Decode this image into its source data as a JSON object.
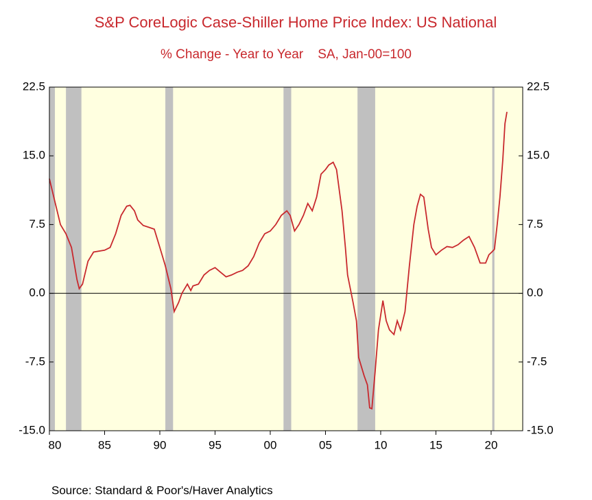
{
  "chart_data": {
    "type": "line",
    "title": "S&P CoreLogic Case-Shiller Home Price Index: US National",
    "subtitle": "% Change - Year to Year    SA, Jan-00=100",
    "source": "Source:  Standard & Poor's/Haver Analytics",
    "xlim": [
      1980,
      2022.86
    ],
    "ylim": [
      -15,
      22.5
    ],
    "yticks": [
      22.5,
      {
        "value": 15,
        "label": "15.0"
      },
      7.5,
      {
        "value": 0,
        "label": "0.0"
      },
      -7.5,
      {
        "value": -15,
        "label": "-15.0"
      }
    ],
    "xticks": [
      {
        "value": 1980,
        "label": "80"
      },
      {
        "value": 1985,
        "label": "85"
      },
      {
        "value": 1990,
        "label": "90"
      },
      {
        "value": 1995,
        "label": "95"
      },
      {
        "value": 2000,
        "label": "00"
      },
      {
        "value": 2005,
        "label": "05"
      },
      {
        "value": 2010,
        "label": "10"
      },
      {
        "value": 2015,
        "label": "15"
      },
      {
        "value": 2020,
        "label": "20"
      }
    ],
    "recessions": [
      [
        1980.0,
        1980.5
      ],
      [
        1981.5,
        1982.9
      ],
      [
        1990.5,
        1991.2
      ],
      [
        2001.2,
        2001.9
      ],
      [
        2007.9,
        2009.5
      ],
      [
        2020.1,
        2020.3
      ]
    ],
    "recession_color": "#c0c0c0",
    "background": "#ffffe0",
    "series": [
      {
        "name": "US National",
        "color": "#c8282d",
        "x": [
          1980.0,
          1980.5,
          1981.0,
          1981.5,
          1982.0,
          1982.5,
          1982.7,
          1983.0,
          1983.5,
          1984.0,
          1985.0,
          1985.5,
          1986.0,
          1986.5,
          1987.0,
          1987.3,
          1987.7,
          1988.0,
          1988.5,
          1989.0,
          1989.5,
          1990.0,
          1990.5,
          1991.0,
          1991.3,
          1991.7,
          1992.0,
          1992.5,
          1992.8,
          1993.0,
          1993.5,
          1994.0,
          1994.5,
          1995.0,
          1995.5,
          1996.0,
          1996.5,
          1997.0,
          1997.5,
          1998.0,
          1998.5,
          1999.0,
          1999.5,
          2000.0,
          2000.5,
          2001.0,
          2001.5,
          2001.8,
          2002.2,
          2002.6,
          2003.0,
          2003.4,
          2003.8,
          2004.2,
          2004.6,
          2005.0,
          2005.3,
          2005.7,
          2006.0,
          2006.5,
          2006.8,
          2007.0,
          2007.5,
          2007.8,
          2008.0,
          2008.5,
          2008.8,
          2009.0,
          2009.2,
          2009.5,
          2009.8,
          2010.2,
          2010.5,
          2010.8,
          2011.2,
          2011.5,
          2011.8,
          2012.2,
          2012.6,
          2013.0,
          2013.3,
          2013.6,
          2013.9,
          2014.3,
          2014.6,
          2015.0,
          2015.5,
          2016.0,
          2016.5,
          2017.0,
          2017.5,
          2018.0,
          2018.5,
          2019.0,
          2019.5,
          2019.8,
          2020.06,
          2020.3,
          2020.55,
          2020.8,
          2021.05,
          2021.25,
          2021.43
        ],
        "values": [
          12.5,
          10,
          7.5,
          6.5,
          5,
          1.5,
          0.5,
          1,
          3.5,
          4.5,
          4.7,
          5,
          6.5,
          8.5,
          9.5,
          9.6,
          9,
          8,
          7.4,
          7.2,
          7,
          5,
          3,
          0.5,
          -2,
          -1,
          0,
          1,
          0.3,
          0.8,
          1,
          2,
          2.5,
          2.8,
          2.3,
          1.8,
          2,
          2.3,
          2.5,
          3,
          4,
          5.5,
          6.5,
          6.8,
          7.5,
          8.5,
          9,
          8.5,
          6.8,
          7.5,
          8.5,
          9.8,
          9,
          10.5,
          13,
          13.5,
          14,
          14.3,
          13.5,
          9,
          5,
          2,
          -1,
          -3,
          -7,
          -9,
          -10,
          -12.5,
          -12.6,
          -8.5,
          -4,
          -0.8,
          -3,
          -4,
          -4.5,
          -3,
          -4,
          -2,
          3,
          7.5,
          9.5,
          10.8,
          10.5,
          7,
          5,
          4.2,
          4.7,
          5.1,
          5,
          5.3,
          5.8,
          6.2,
          5,
          3.3,
          3.3,
          4.2,
          4.5,
          4.8,
          7.5,
          10.5,
          14.5,
          18.5,
          19.8
        ]
      }
    ]
  }
}
